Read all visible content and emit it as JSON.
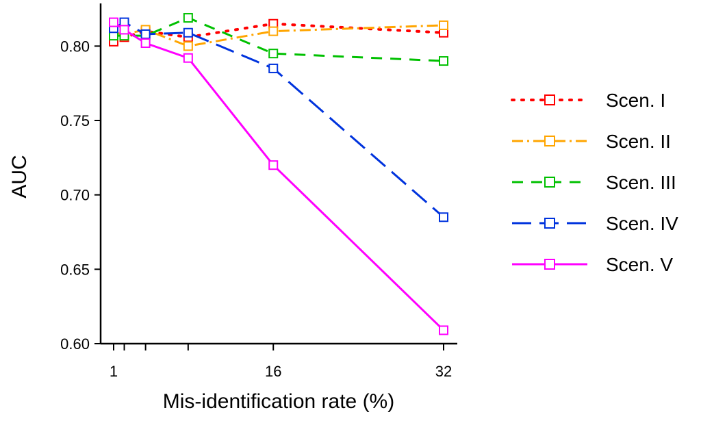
{
  "chart_data": {
    "type": "line",
    "title": "",
    "xlabel": "Mis-identification rate (%)",
    "ylabel": "AUC",
    "xlim": [
      0,
      33
    ],
    "ylim": [
      0.6,
      0.825
    ],
    "x_ticks": [
      1,
      2,
      4,
      8,
      16,
      32
    ],
    "x_tick_labels": [
      "1",
      "",
      "",
      "",
      "16",
      "32"
    ],
    "y_ticks": [
      0.6,
      0.65,
      0.7,
      0.75,
      0.8
    ],
    "y_tick_labels": [
      "0.60",
      "0.65",
      "0.70",
      "0.75",
      "0.80"
    ],
    "grid": false,
    "legend_position": "right",
    "x": [
      1,
      2,
      4,
      8,
      16,
      32
    ],
    "series": [
      {
        "name": "Scen. I",
        "color": "#ff0000",
        "dash": "dotted",
        "values": [
          0.803,
          0.806,
          0.81,
          0.806,
          0.815,
          0.809
        ]
      },
      {
        "name": "Scen. II",
        "color": "#ffa500",
        "dash": "dotdash",
        "values": [
          0.809,
          0.808,
          0.811,
          0.8,
          0.81,
          0.814
        ]
      },
      {
        "name": "Scen. III",
        "color": "#00c000",
        "dash": "dashed",
        "values": [
          0.807,
          0.807,
          0.807,
          0.819,
          0.795,
          0.79
        ]
      },
      {
        "name": "Scen. IV",
        "color": "#0033dd",
        "dash": "longdash",
        "values": [
          0.812,
          0.816,
          0.808,
          0.809,
          0.785,
          0.685
        ]
      },
      {
        "name": "Scen. V",
        "color": "#ff00ff",
        "dash": "solid",
        "values": [
          0.816,
          0.811,
          0.802,
          0.792,
          0.72,
          0.609
        ]
      }
    ]
  }
}
